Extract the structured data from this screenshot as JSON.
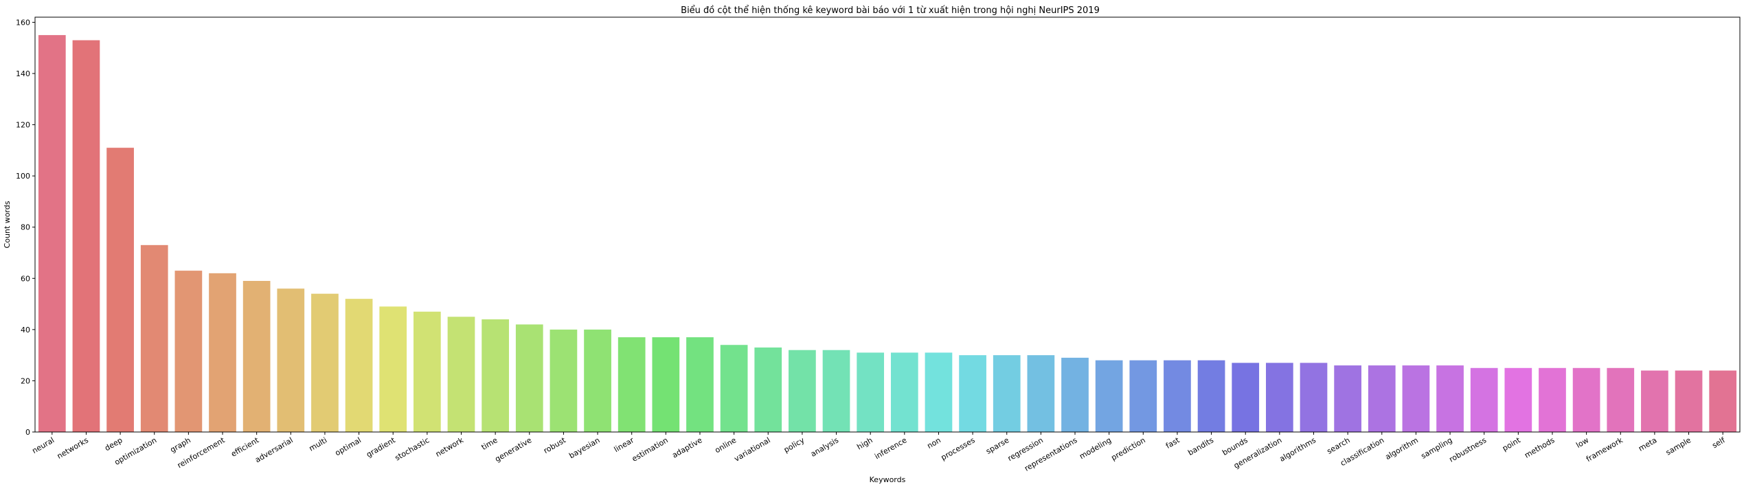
{
  "chart_data": {
    "type": "bar",
    "title": "Biểu đồ cột thể hiện thống kê keyword bài báo với 1 từ xuất hiện trong hội nghị NeurIPS 2019",
    "xlabel": "Keywords",
    "ylabel": "Count words",
    "ylim": [
      0,
      162
    ],
    "yticks": [
      0,
      20,
      40,
      60,
      80,
      100,
      120,
      140,
      160
    ],
    "grid": false,
    "categories": [
      "neural",
      "networks",
      "deep",
      "optimization",
      "graph",
      "reinforcement",
      "efficient",
      "adversarial",
      "multi",
      "optimal",
      "gradient",
      "stochastic",
      "network",
      "time",
      "generative",
      "robust",
      "bayesian",
      "linear",
      "estimation",
      "adaptive",
      "online",
      "variational",
      "policy",
      "analysis",
      "high",
      "inference",
      "non",
      "processes",
      "sparse",
      "regression",
      "representations",
      "modeling",
      "prediction",
      "fast",
      "bandits",
      "bounds",
      "generalization",
      "algorithms",
      "search",
      "classification",
      "algorithm",
      "sampling",
      "robustness",
      "point",
      "methods",
      "low",
      "framework",
      "meta",
      "sample",
      "self"
    ],
    "values": [
      155,
      153,
      111,
      73,
      63,
      62,
      59,
      56,
      54,
      52,
      49,
      47,
      45,
      44,
      42,
      40,
      40,
      37,
      37,
      37,
      34,
      33,
      32,
      32,
      31,
      31,
      31,
      30,
      30,
      30,
      29,
      28,
      28,
      28,
      28,
      27,
      27,
      27,
      26,
      26,
      26,
      26,
      25,
      25,
      25,
      25,
      25,
      24,
      24,
      24
    ]
  }
}
